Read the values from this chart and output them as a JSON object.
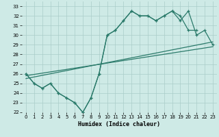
{
  "x": [
    0,
    1,
    2,
    3,
    4,
    5,
    6,
    7,
    8,
    9,
    10,
    11,
    12,
    13,
    14,
    15,
    16,
    17,
    18,
    19,
    20,
    21,
    22,
    23
  ],
  "line_jagged1": [
    26,
    25,
    24.5,
    25,
    24,
    23.5,
    23,
    22,
    23.5,
    26,
    30.0,
    30.5,
    31.5,
    32.5,
    32.0,
    32.0,
    31.5,
    32.0,
    32.5,
    32.0,
    30.5,
    30.5,
    null,
    null
  ],
  "line_jagged2": [
    26,
    25,
    24.5,
    25,
    24,
    23.5,
    23,
    22,
    23.5,
    26,
    30.0,
    30.5,
    31.5,
    32.5,
    32.0,
    32.0,
    31.5,
    32.0,
    32.5,
    31.5,
    32.5,
    30.0,
    30.5,
    29.0
  ],
  "line_straight1": [
    [
      0,
      25.8
    ],
    [
      23,
      28.8
    ]
  ],
  "line_straight2": [
    [
      0,
      25.5
    ],
    [
      23,
      29.3
    ]
  ],
  "color": "#2a7a6a",
  "bg_color": "#ceeae6",
  "grid_color": "#aaccc8",
  "xlabel": "Humidex (Indice chaleur)",
  "xlim": [
    -0.5,
    23.5
  ],
  "ylim": [
    22,
    33.5
  ],
  "yticks": [
    22,
    23,
    24,
    25,
    26,
    27,
    28,
    29,
    30,
    31,
    32,
    33
  ],
  "xticks": [
    0,
    1,
    2,
    3,
    4,
    5,
    6,
    7,
    8,
    9,
    10,
    11,
    12,
    13,
    14,
    15,
    16,
    17,
    18,
    19,
    20,
    21,
    22,
    23
  ]
}
